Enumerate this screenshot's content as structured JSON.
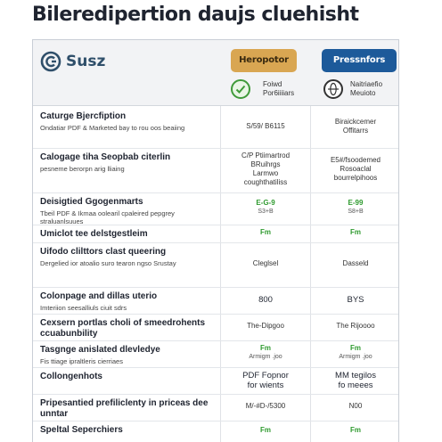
{
  "page": {
    "title": "Bileredipertion daujs cluehisht"
  },
  "brand": {
    "name": "Susz",
    "icon": "brand-c-logo-icon",
    "color": "#2f4f6a"
  },
  "plans": [
    {
      "button_label": "Heropotor",
      "button_color": "#d9a652",
      "icon": "check-circle-icon",
      "info": [
        "Foiwd",
        "Por6iiiiars"
      ]
    },
    {
      "button_label": "Pressnfors",
      "button_color": "#1d5a9a",
      "icon": "globe-circle-icon",
      "info": [
        "Naitriaefio",
        "Meuioto"
      ]
    }
  ],
  "rows": [
    {
      "title": "Caturge Bjercfiption",
      "sub": "Ondatiar PDF & Marketed bay to rou oos beaiing",
      "a": [
        "S/59/ B6115"
      ],
      "b": [
        "Biraickcemer",
        "Offitarrs"
      ]
    },
    {
      "title": "Calogage tiha Seopbab citerlin",
      "sub": "pesneme berorpn arig lliaing",
      "a": [
        "C/P Ptiimartrod",
        "BRuihrgs",
        "Larmwo",
        "coughthatiliss"
      ],
      "b": [
        "E5#/fsoodemed",
        "Rosoaclal",
        "bourrelpihoos"
      ]
    },
    {
      "title": "Deisigtied Ggogenmarts",
      "sub": "Tbeil PDF & Ikmaa oolearil cpaleired pepgrey straluanlsuues",
      "a": [
        "E-G-9",
        "S3+B"
      ],
      "b": [
        "E-99",
        "S8+B"
      ],
      "a_green": true,
      "b_green": true
    },
    {
      "title": "Umiclot tee delstgestleim",
      "sub": "",
      "a": [
        "Fm"
      ],
      "b": [
        "Fm"
      ],
      "a_green": true,
      "b_green": true
    },
    {
      "title": "Uifodo clilttors clast queering",
      "sub": "Dergelied ior atoalio suro tearon ngso Srustay",
      "a": [
        "Cleglsel"
      ],
      "b": [
        "Dasseld"
      ]
    },
    {
      "title": "Colonpage and dillas uterio",
      "sub": "Imteriion seesalliuls ciuit sdrs",
      "a": [
        "800"
      ],
      "b": [
        "BYS"
      ],
      "big": true
    },
    {
      "title": "Cexsern portlas choli of smeedrohents ccuabunbility",
      "sub": "",
      "a": [
        "The-Dipgoo"
      ],
      "b": [
        "The Rijoooo"
      ]
    },
    {
      "title": "Tasgnge anislated dlevledye",
      "sub": "Fis ttiage ipraltleris cierriaes",
      "a": [
        "Fm",
        "Armigm .joo"
      ],
      "b": [
        "Fm",
        "Armigm .joo"
      ],
      "a_green": true,
      "b_green": true
    },
    {
      "title": "Collongenhots",
      "sub": "",
      "a": [
        "PDF Fopnor",
        "for wients"
      ],
      "b": [
        "MM tegilos",
        "fo meees"
      ],
      "big": true
    },
    {
      "title": "Pripesantied prefiliclenty in priceas dee unntar",
      "sub": "",
      "a": [
        "M/-#D-/5300"
      ],
      "b": [
        "N00"
      ]
    },
    {
      "title": "Speltal Seperchiers",
      "sub": "",
      "a": [
        "Fm"
      ],
      "b": [
        "Fm"
      ],
      "a_green": true,
      "b_green": true
    }
  ]
}
